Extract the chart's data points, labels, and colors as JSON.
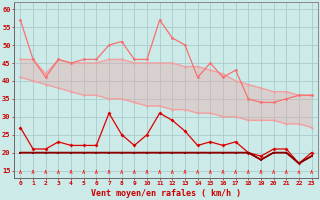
{
  "x": [
    0,
    1,
    2,
    3,
    4,
    5,
    6,
    7,
    8,
    9,
    10,
    11,
    12,
    13,
    14,
    15,
    16,
    17,
    18,
    19,
    20,
    21,
    22,
    23
  ],
  "line_rafales": [
    57,
    46,
    41,
    46,
    45,
    46,
    46,
    50,
    51,
    46,
    46,
    57,
    52,
    50,
    41,
    45,
    41,
    43,
    35,
    34,
    34,
    35,
    36,
    36
  ],
  "line_avg_upper": [
    46,
    46,
    42,
    46,
    45,
    45,
    45,
    46,
    46,
    45,
    45,
    45,
    45,
    44,
    44,
    43,
    42,
    40,
    39,
    38,
    37,
    37,
    36,
    36
  ],
  "line_avg_lower": [
    41,
    40,
    39,
    38,
    37,
    36,
    36,
    35,
    35,
    34,
    33,
    33,
    32,
    32,
    31,
    31,
    30,
    30,
    29,
    29,
    29,
    28,
    28,
    27
  ],
  "line_moyen": [
    27,
    21,
    21,
    23,
    22,
    22,
    22,
    31,
    25,
    22,
    25,
    31,
    29,
    26,
    22,
    23,
    22,
    23,
    20,
    19,
    21,
    21,
    17,
    20
  ],
  "line_min1": [
    20,
    20,
    20,
    20,
    20,
    20,
    20,
    20,
    20,
    20,
    20,
    20,
    20,
    20,
    20,
    20,
    20,
    20,
    20,
    18,
    20,
    20,
    17,
    19
  ],
  "line_min2": [
    20,
    20,
    20,
    20,
    20,
    20,
    20,
    20,
    20,
    20,
    20,
    20,
    20,
    20,
    20,
    20,
    20,
    20,
    20,
    18,
    20,
    20,
    17,
    19
  ],
  "color_rafales": "#f87070",
  "color_avg_upper": "#f0a0a0",
  "color_avg_lower": "#f0a0a0",
  "color_moyen": "#dd0000",
  "color_min1": "#cc0000",
  "color_min2": "#880000",
  "color_arrow": "#ee3333",
  "bg_color": "#cceae8",
  "grid_color": "#aacccc",
  "axis_color": "#888888",
  "xlabel": "Vent moyen/en rafales ( km/h )",
  "xlabel_color": "#cc0000",
  "tick_color": "#cc0000",
  "ylim": [
    13,
    62
  ],
  "yticks": [
    15,
    20,
    25,
    30,
    35,
    40,
    45,
    50,
    55,
    60
  ]
}
